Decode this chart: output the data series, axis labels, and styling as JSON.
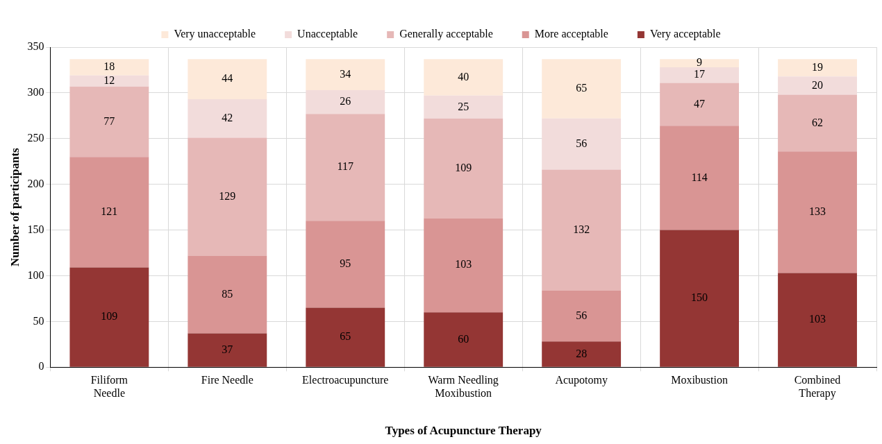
{
  "chart_data": {
    "type": "bar",
    "stacked": true,
    "xlabel": "Types of Acupuncture Therapy",
    "ylabel": "Number of participants",
    "categories": [
      "Filiform Needle",
      "Fire Needle",
      "Electroacupuncture",
      "Warm Needling Moxibustion",
      "Acupotomy",
      "Moxibustion",
      "Combined Therapy"
    ],
    "series": [
      {
        "name": "Very acceptable",
        "color": "#943634",
        "values": [
          109,
          37,
          65,
          60,
          28,
          150,
          103
        ]
      },
      {
        "name": "More acceptable",
        "color": "#d99594",
        "values": [
          121,
          85,
          95,
          103,
          56,
          114,
          133
        ]
      },
      {
        "name": "Generally acceptable",
        "color": "#e6b8b7",
        "values": [
          77,
          129,
          117,
          109,
          132,
          47,
          62
        ]
      },
      {
        "name": "Unacceptable",
        "color": "#f2dcdb",
        "values": [
          12,
          42,
          26,
          25,
          56,
          17,
          20
        ]
      },
      {
        "name": "Very unacceptable",
        "color": "#fde9d9",
        "values": [
          18,
          44,
          34,
          40,
          65,
          9,
          19
        ]
      }
    ],
    "ylim": [
      0,
      350
    ],
    "yticks": [
      0,
      50,
      100,
      150,
      200,
      250,
      300,
      350
    ],
    "grid": true,
    "legend": "top",
    "data_labels": true
  }
}
